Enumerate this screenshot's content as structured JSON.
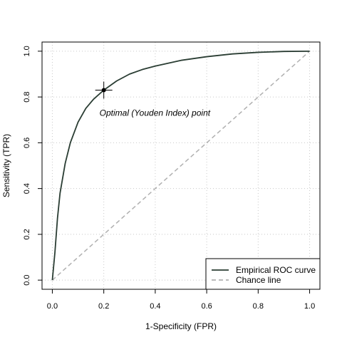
{
  "chart_data": {
    "type": "line",
    "xlabel": "1-Specificity (FPR)",
    "ylabel": "Sensitivity (TPR)",
    "xlim": [
      -0.04,
      1.04
    ],
    "ylim": [
      -0.04,
      1.04
    ],
    "x_ticks": [
      0.0,
      0.2,
      0.4,
      0.6,
      0.8,
      1.0
    ],
    "y_ticks": [
      0.0,
      0.2,
      0.4,
      0.6,
      0.8,
      1.0
    ],
    "x_tick_labels": [
      "0.0",
      "0.2",
      "0.4",
      "0.6",
      "0.8",
      "1.0"
    ],
    "y_tick_labels": [
      "0.0",
      "0.2",
      "0.4",
      "0.6",
      "0.8",
      "1.0"
    ],
    "grid": true,
    "legend_position": "bottom-right",
    "series": [
      {
        "name": "Empirical ROC curve",
        "color": "#2a3d33",
        "style": "solid",
        "x": [
          0.0,
          0.01,
          0.02,
          0.03,
          0.05,
          0.07,
          0.1,
          0.13,
          0.16,
          0.2,
          0.25,
          0.3,
          0.35,
          0.4,
          0.5,
          0.6,
          0.7,
          0.8,
          0.9,
          1.0
        ],
        "y": [
          0.0,
          0.12,
          0.27,
          0.38,
          0.51,
          0.6,
          0.69,
          0.75,
          0.79,
          0.83,
          0.87,
          0.9,
          0.92,
          0.935,
          0.96,
          0.976,
          0.988,
          0.995,
          0.999,
          1.0
        ]
      },
      {
        "name": "Chance line",
        "color": "#b0b0b0",
        "style": "dashed",
        "x": [
          0.0,
          1.0
        ],
        "y": [
          0.0,
          1.0
        ]
      }
    ],
    "annotations": [
      {
        "text": "Optimal (Youden Index) point",
        "x": 0.2,
        "y": 0.83
      }
    ]
  }
}
